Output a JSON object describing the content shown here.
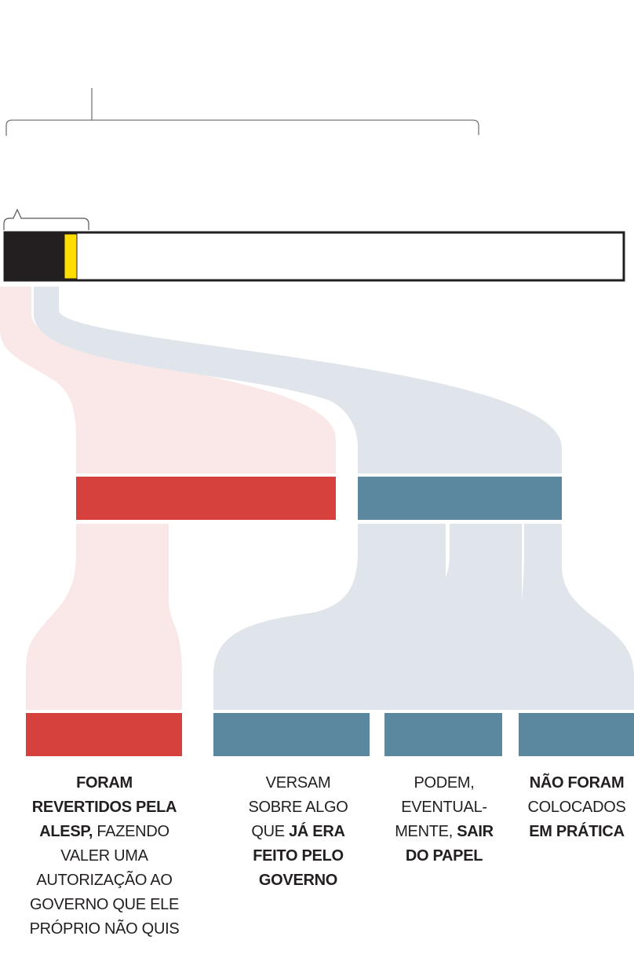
{
  "colors": {
    "total_bar_fill": "#231f20",
    "highlight": "#ffdd00",
    "reverted": "#d6403d",
    "reverted_flow": "#f9e8e7",
    "other": "#5b889f",
    "other_flow": "#e0e5ec"
  },
  "labels": [
    {
      "lines": [
        [
          {
            "text": "FORAM",
            "bold": true
          }
        ],
        [
          {
            "text": "REVERTIDOS PELA",
            "bold": true
          }
        ],
        [
          {
            "text": "ALESP,",
            "bold": true
          },
          {
            "text": " FAZENDO",
            "bold": false
          }
        ],
        [
          {
            "text": "VALER UMA",
            "bold": false
          }
        ],
        [
          {
            "text": "AUTORIZAÇÃO AO",
            "bold": false
          }
        ],
        [
          {
            "text": "GOVERNO QUE ELE",
            "bold": false
          }
        ],
        [
          {
            "text": "PRÓPRIO NÃO QUIS",
            "bold": false
          }
        ]
      ]
    },
    {
      "lines": [
        [
          {
            "text": "VERSAM",
            "bold": false
          }
        ],
        [
          {
            "text": "SOBRE ALGO",
            "bold": false
          }
        ],
        [
          {
            "text": "QUE ",
            "bold": false
          },
          {
            "text": "JÁ ERA",
            "bold": true
          }
        ],
        [
          {
            "text": "FEITO PELO",
            "bold": true
          }
        ],
        [
          {
            "text": "GOVERNO",
            "bold": true
          }
        ]
      ]
    },
    {
      "lines": [
        [
          {
            "text": "PODEM,",
            "bold": false
          }
        ],
        [
          {
            "text": "EVENTUAL-",
            "bold": false
          }
        ],
        [
          {
            "text": "MENTE, ",
            "bold": false
          },
          {
            "text": "SAIR",
            "bold": true
          }
        ],
        [
          {
            "text": "DO PAPEL",
            "bold": true
          }
        ]
      ]
    },
    {
      "lines": [
        [
          {
            "text": "NÃO FORAM",
            "bold": true
          }
        ],
        [
          {
            "text": "COLOCADOS",
            "bold": false
          }
        ],
        [
          {
            "text": "EM PRÁTICA",
            "bold": true
          }
        ]
      ]
    }
  ]
}
